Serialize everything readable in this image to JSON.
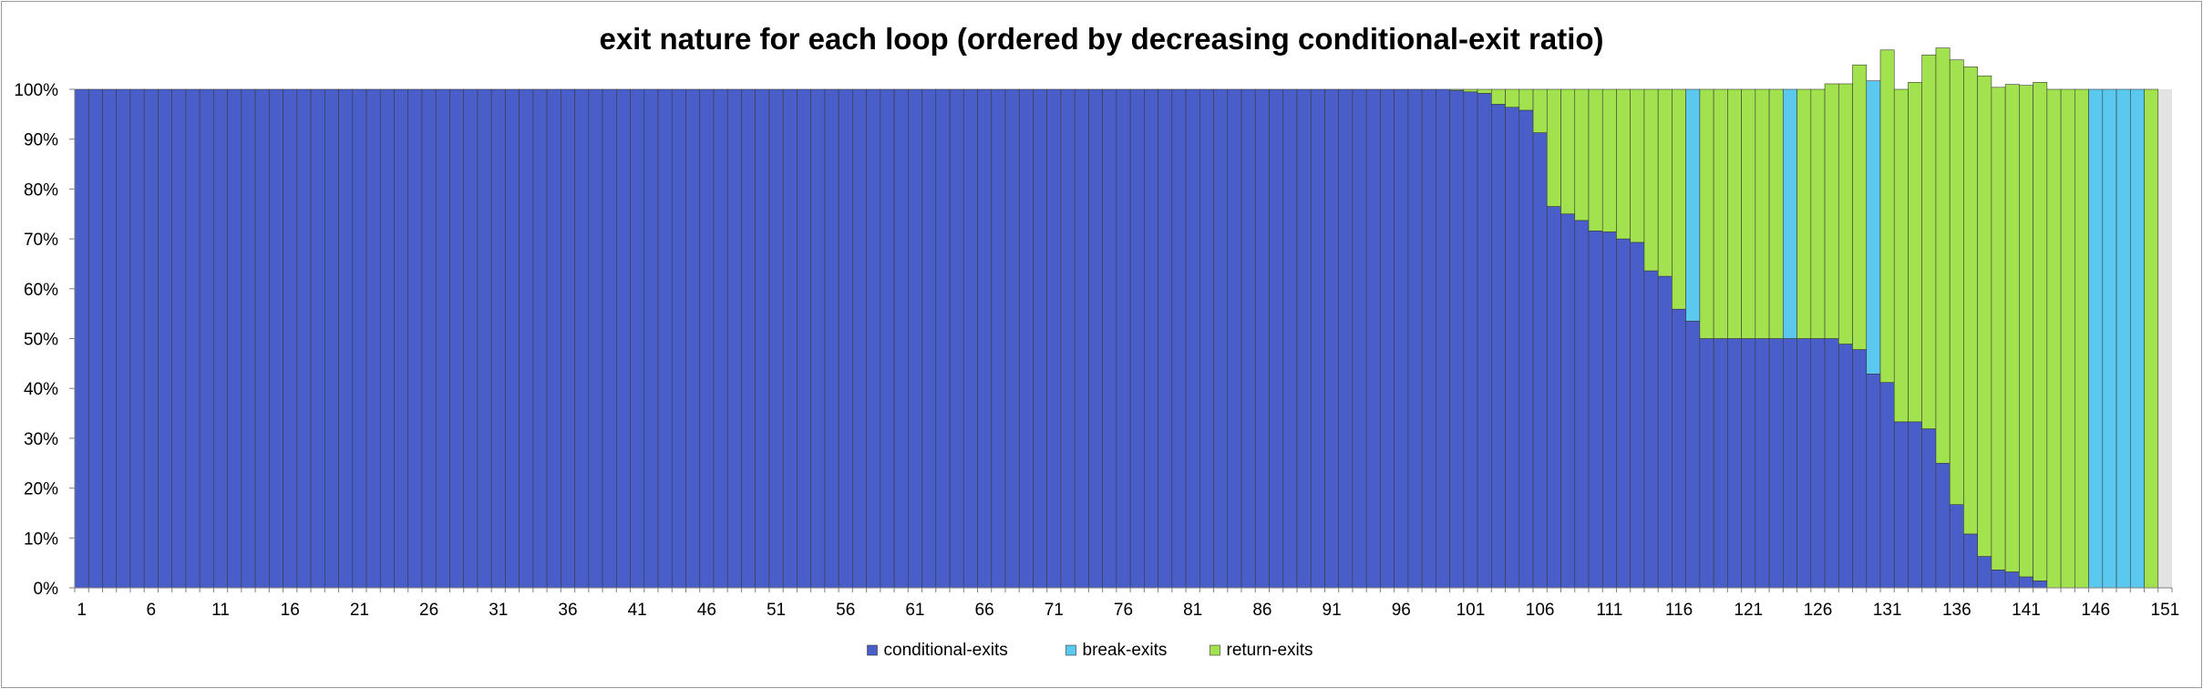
{
  "chart_data": {
    "type": "bar",
    "stacked": true,
    "normalized": true,
    "title": "exit nature for each loop (ordered by decreasing conditional-exit ratio)",
    "xlabel": "",
    "ylabel": "",
    "ylim": [
      0,
      100
    ],
    "y_ticks": [
      "0%",
      "10%",
      "20%",
      "30%",
      "40%",
      "50%",
      "60%",
      "70%",
      "80%",
      "90%",
      "100%"
    ],
    "x_ticks": [
      "1",
      "6",
      "11",
      "16",
      "21",
      "26",
      "31",
      "36",
      "41",
      "46",
      "51",
      "56",
      "61",
      "66",
      "71",
      "76",
      "81",
      "86",
      "91",
      "96",
      "101",
      "106",
      "111",
      "116",
      "121",
      "126",
      "131",
      "136",
      "141",
      "146",
      "151"
    ],
    "categories": [
      "1",
      "2",
      "3",
      "4",
      "5",
      "6",
      "7",
      "8",
      "9",
      "10",
      "11",
      "12",
      "13",
      "14",
      "15",
      "16",
      "17",
      "18",
      "19",
      "20",
      "21",
      "22",
      "23",
      "24",
      "25",
      "26",
      "27",
      "28",
      "29",
      "30",
      "31",
      "32",
      "33",
      "34",
      "35",
      "36",
      "37",
      "38",
      "39",
      "40",
      "41",
      "42",
      "43",
      "44",
      "45",
      "46",
      "47",
      "48",
      "49",
      "50",
      "51",
      "52",
      "53",
      "54",
      "55",
      "56",
      "57",
      "58",
      "59",
      "60",
      "61",
      "62",
      "63",
      "64",
      "65",
      "66",
      "67",
      "68",
      "69",
      "70",
      "71",
      "72",
      "73",
      "74",
      "75",
      "76",
      "77",
      "78",
      "79",
      "80",
      "81",
      "82",
      "83",
      "84",
      "85",
      "86",
      "87",
      "88",
      "89",
      "90",
      "91",
      "92",
      "93",
      "94",
      "95",
      "96",
      "97",
      "98",
      "99",
      "100",
      "101",
      "102",
      "103",
      "104",
      "105",
      "106",
      "107",
      "108",
      "109",
      "110",
      "111",
      "112",
      "113",
      "114",
      "115",
      "116",
      "117",
      "118",
      "119",
      "120",
      "121",
      "122",
      "123",
      "124",
      "125",
      "126",
      "127",
      "128",
      "129",
      "130",
      "131",
      "132",
      "133",
      "134",
      "135",
      "136",
      "137",
      "138",
      "139",
      "140",
      "141",
      "142",
      "143",
      "144",
      "145",
      "146",
      "147",
      "148",
      "149",
      "150",
      "151"
    ],
    "series": [
      {
        "name": "conditional-exits",
        "color": "#4a5ec9",
        "values": [
          100,
          100,
          100,
          100,
          100,
          100,
          100,
          100,
          100,
          100,
          100,
          100,
          100,
          100,
          100,
          100,
          100,
          100,
          100,
          100,
          100,
          100,
          100,
          100,
          100,
          100,
          100,
          100,
          100,
          100,
          100,
          100,
          100,
          100,
          100,
          100,
          100,
          100,
          100,
          100,
          100,
          100,
          100,
          100,
          100,
          100,
          100,
          100,
          100,
          100,
          100,
          100,
          100,
          100,
          100,
          100,
          100,
          100,
          100,
          100,
          100,
          100,
          100,
          100,
          100,
          100,
          100,
          100,
          100,
          100,
          100,
          100,
          100,
          100,
          100,
          100,
          100,
          100,
          100,
          100,
          100,
          100,
          100,
          100,
          100,
          100,
          100,
          100,
          100,
          100,
          100,
          100,
          100,
          100,
          100,
          100,
          100,
          100,
          100,
          99.8,
          99.5,
          99.2,
          97,
          96.4,
          95.8,
          91.3,
          76.5,
          75,
          73.7,
          71.6,
          71.4,
          70,
          69.3,
          63.6,
          62.5,
          55.9,
          53.5,
          50,
          50,
          50,
          50,
          50,
          50,
          50,
          50,
          50,
          50,
          48.9,
          47.8,
          42.9,
          41.2,
          33.3,
          33.3,
          31.9,
          25,
          16.7,
          10.8,
          6.3,
          3.6,
          3.2,
          2.2,
          1.4,
          0,
          0,
          0,
          0,
          0,
          0,
          0,
          0,
          0
        ]
      },
      {
        "name": "break-exits",
        "color": "#5bc8ef",
        "values": [
          0,
          0,
          0,
          0,
          0,
          0,
          0,
          0,
          0,
          0,
          0,
          0,
          0,
          0,
          0,
          0,
          0,
          0,
          0,
          0,
          0,
          0,
          0,
          0,
          0,
          0,
          0,
          0,
          0,
          0,
          0,
          0,
          0,
          0,
          0,
          0,
          0,
          0,
          0,
          0,
          0,
          0,
          0,
          0,
          0,
          0,
          0,
          0,
          0,
          0,
          0,
          0,
          0,
          0,
          0,
          0,
          0,
          0,
          0,
          0,
          0,
          0,
          0,
          0,
          0,
          0,
          0,
          0,
          0,
          0,
          0,
          0,
          0,
          0,
          0,
          0,
          0,
          0,
          0,
          0,
          0,
          0,
          0,
          0,
          0,
          0,
          0,
          0,
          0,
          0,
          0,
          0,
          0,
          0,
          0,
          0,
          0,
          0,
          0,
          0,
          0,
          0,
          0,
          0,
          0,
          0,
          0,
          0,
          0,
          0,
          0,
          0,
          0,
          0,
          0,
          0,
          46.5,
          0,
          0,
          0,
          0,
          0,
          0,
          50,
          0,
          0,
          0,
          0,
          0,
          58.8,
          0,
          0,
          0,
          0,
          0,
          0,
          0,
          0,
          0,
          0,
          0,
          0,
          0,
          0,
          0,
          100,
          100,
          100,
          100,
          0,
          0
        ]
      },
      {
        "name": "return-exits",
        "color": "#a3e24f",
        "values": [
          0,
          0,
          0,
          0,
          0,
          0,
          0,
          0,
          0,
          0,
          0,
          0,
          0,
          0,
          0,
          0,
          0,
          0,
          0,
          0,
          0,
          0,
          0,
          0,
          0,
          0,
          0,
          0,
          0,
          0,
          0,
          0,
          0,
          0,
          0,
          0,
          0,
          0,
          0,
          0,
          0,
          0,
          0,
          0,
          0,
          0,
          0,
          0,
          0,
          0,
          0,
          0,
          0,
          0,
          0,
          0,
          0,
          0,
          0,
          0,
          0,
          0,
          0,
          0,
          0,
          0,
          0,
          0,
          0,
          0,
          0,
          0,
          0,
          0,
          0,
          0,
          0,
          0,
          0,
          0,
          0,
          0,
          0,
          0,
          0,
          0,
          0,
          0,
          0,
          0,
          0,
          0,
          0,
          0,
          0,
          0,
          0,
          0,
          0,
          0.2,
          0.5,
          0.8,
          3,
          3.6,
          4.2,
          8.7,
          23.5,
          25,
          26.3,
          28.4,
          28.6,
          30,
          30.7,
          36.4,
          37.5,
          44.1,
          0,
          50,
          50,
          50,
          50,
          50,
          50,
          0,
          50,
          50,
          51.1,
          52.2,
          57.1,
          0,
          66.7,
          66.7,
          68.1,
          75,
          83.3,
          89.2,
          93.7,
          96.4,
          96.8,
          97.8,
          98.6,
          100,
          100,
          100,
          100,
          0,
          0,
          0,
          0,
          100,
          0
        ]
      }
    ],
    "legend_position": "bottom",
    "grid": false
  }
}
